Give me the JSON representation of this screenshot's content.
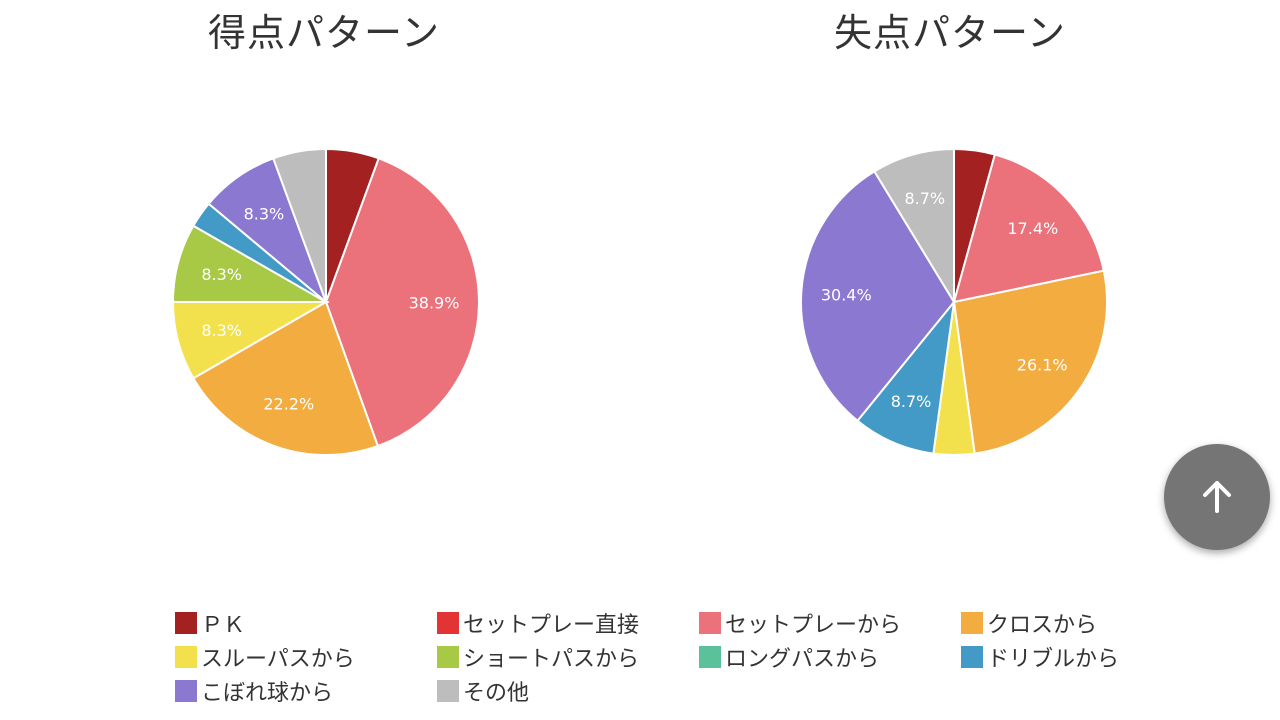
{
  "colors": {
    "pk": "#a42121",
    "setplay_direct": "#e23434",
    "setplay_from": "#eb717a",
    "cross": "#f3ac40",
    "through_pass": "#f2e14d",
    "short_pass": "#a8c945",
    "long_pass": "#5bc19a",
    "dribble": "#439ac7",
    "loose_ball": "#8b78d0",
    "other": "#bdbdbd"
  },
  "legend": [
    {
      "label": "ＰＫ",
      "color_key": "pk"
    },
    {
      "label": "セットプレー直接",
      "color_key": "setplay_direct"
    },
    {
      "label": "セットプレーから",
      "color_key": "setplay_from"
    },
    {
      "label": "クロスから",
      "color_key": "cross"
    },
    {
      "label": "スルーパスから",
      "color_key": "through_pass"
    },
    {
      "label": "ショートパスから",
      "color_key": "short_pass"
    },
    {
      "label": "ロングパスから",
      "color_key": "long_pass"
    },
    {
      "label": "ドリブルから",
      "color_key": "dribble"
    },
    {
      "label": "こぼれ球から",
      "color_key": "loose_ball"
    },
    {
      "label": "その他",
      "color_key": "other"
    }
  ],
  "chart_data": [
    {
      "type": "pie",
      "title": "得点パターン",
      "slices": [
        {
          "name": "ＰＫ",
          "value": 5.6,
          "color_key": "pk",
          "label": ""
        },
        {
          "name": "セットプレーから",
          "value": 38.9,
          "color_key": "setplay_from",
          "label": "38.9%"
        },
        {
          "name": "クロスから",
          "value": 22.2,
          "color_key": "cross",
          "label": "22.2%"
        },
        {
          "name": "スルーパスから",
          "value": 8.3,
          "color_key": "through_pass",
          "label": "8.3%"
        },
        {
          "name": "ショートパスから",
          "value": 8.3,
          "color_key": "short_pass",
          "label": "8.3%"
        },
        {
          "name": "ドリブルから",
          "value": 2.8,
          "color_key": "dribble",
          "label": ""
        },
        {
          "name": "こぼれ球から",
          "value": 8.3,
          "color_key": "loose_ball",
          "label": "8.3%"
        },
        {
          "name": "その他",
          "value": 5.6,
          "color_key": "other",
          "label": ""
        }
      ]
    },
    {
      "type": "pie",
      "title": "失点パターン",
      "slices": [
        {
          "name": "ＰＫ",
          "value": 4.3,
          "color_key": "pk",
          "label": ""
        },
        {
          "name": "セットプレーから",
          "value": 17.4,
          "color_key": "setplay_from",
          "label": "17.4%"
        },
        {
          "name": "クロスから",
          "value": 26.1,
          "color_key": "cross",
          "label": "26.1%"
        },
        {
          "name": "スルーパスから",
          "value": 4.3,
          "color_key": "through_pass",
          "label": ""
        },
        {
          "name": "ドリブルから",
          "value": 8.7,
          "color_key": "dribble",
          "label": "8.7%"
        },
        {
          "name": "こぼれ球から",
          "value": 30.4,
          "color_key": "loose_ball",
          "label": "30.4%"
        },
        {
          "name": "その他",
          "value": 8.7,
          "color_key": "other",
          "label": "8.7%"
        }
      ]
    }
  ],
  "scroll_top_button": {
    "icon": "arrow-up-icon"
  }
}
